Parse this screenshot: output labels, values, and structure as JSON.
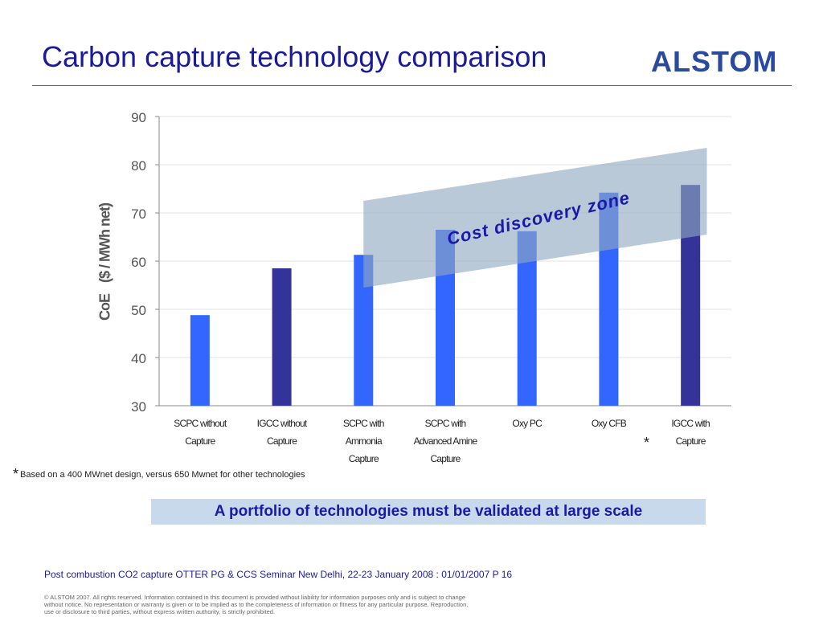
{
  "slide": {
    "title": "Carbon capture technology comparison",
    "logo_text": "ALSTOM",
    "banner": "A portfolio of technologies must be validated at large scale",
    "footnote_star": "*",
    "footnote": "Based on a 400 MWnet design, versus 650 Mwnet for other technologies",
    "footer": "Post combustion CO2 capture OTTER PG & CCS Seminar New Delhi, 22-23 January 2008 : 01/01/2007  P 16",
    "copyright": "© ALSTOM 2007. All rights reserved. Information contained in this document is provided without liability for information purposes only and is subject to change without notice. No representation or warranty is given or to be implied as to the completeness of information or fitness for any particular purpose. Reproduction, use or disclosure to third parties, without express written authority, is strictly prohibited."
  },
  "colors": {
    "title": "#1a1a9a",
    "bar_light": "#3366ff",
    "bar_dark": "#333399",
    "zone": "#8fa8be",
    "banner_bg": "#c7d9ea"
  },
  "chart_data": {
    "type": "bar",
    "ylabel": "CoE",
    "ylabel_unit": "($ / MWh net)",
    "ylim": [
      30,
      90
    ],
    "yticks": [
      30,
      40,
      50,
      60,
      70,
      80,
      90
    ],
    "grid": true,
    "categories": [
      [
        "SCPC without",
        "Capture"
      ],
      [
        "IGCC without",
        "Capture"
      ],
      [
        "SCPC with",
        "Ammonia",
        "Capture"
      ],
      [
        "SCPC with",
        "Advanced Amine",
        "Capture"
      ],
      [
        "Oxy PC"
      ],
      [
        "Oxy CFB"
      ],
      [
        "IGCC with",
        "Capture"
      ]
    ],
    "values": [
      48.8,
      58.5,
      61.3,
      66.5,
      66.2,
      74.2,
      75.8
    ],
    "bar_shades": [
      "light",
      "dark",
      "light",
      "light",
      "light",
      "light",
      "dark"
    ],
    "footnote_marker": "*",
    "footnote_marker_category": "Oxy CFB",
    "annotation": "Cost discovery zone",
    "zone_band": {
      "lower": {
        "from": {
          "category": 2,
          "value": 54.5
        },
        "to": {
          "category": 6.2,
          "value": 65.5
        }
      },
      "upper": {
        "from": {
          "category": 2,
          "value": 72.5
        },
        "to": {
          "category": 6.2,
          "value": 83.5
        }
      }
    }
  }
}
